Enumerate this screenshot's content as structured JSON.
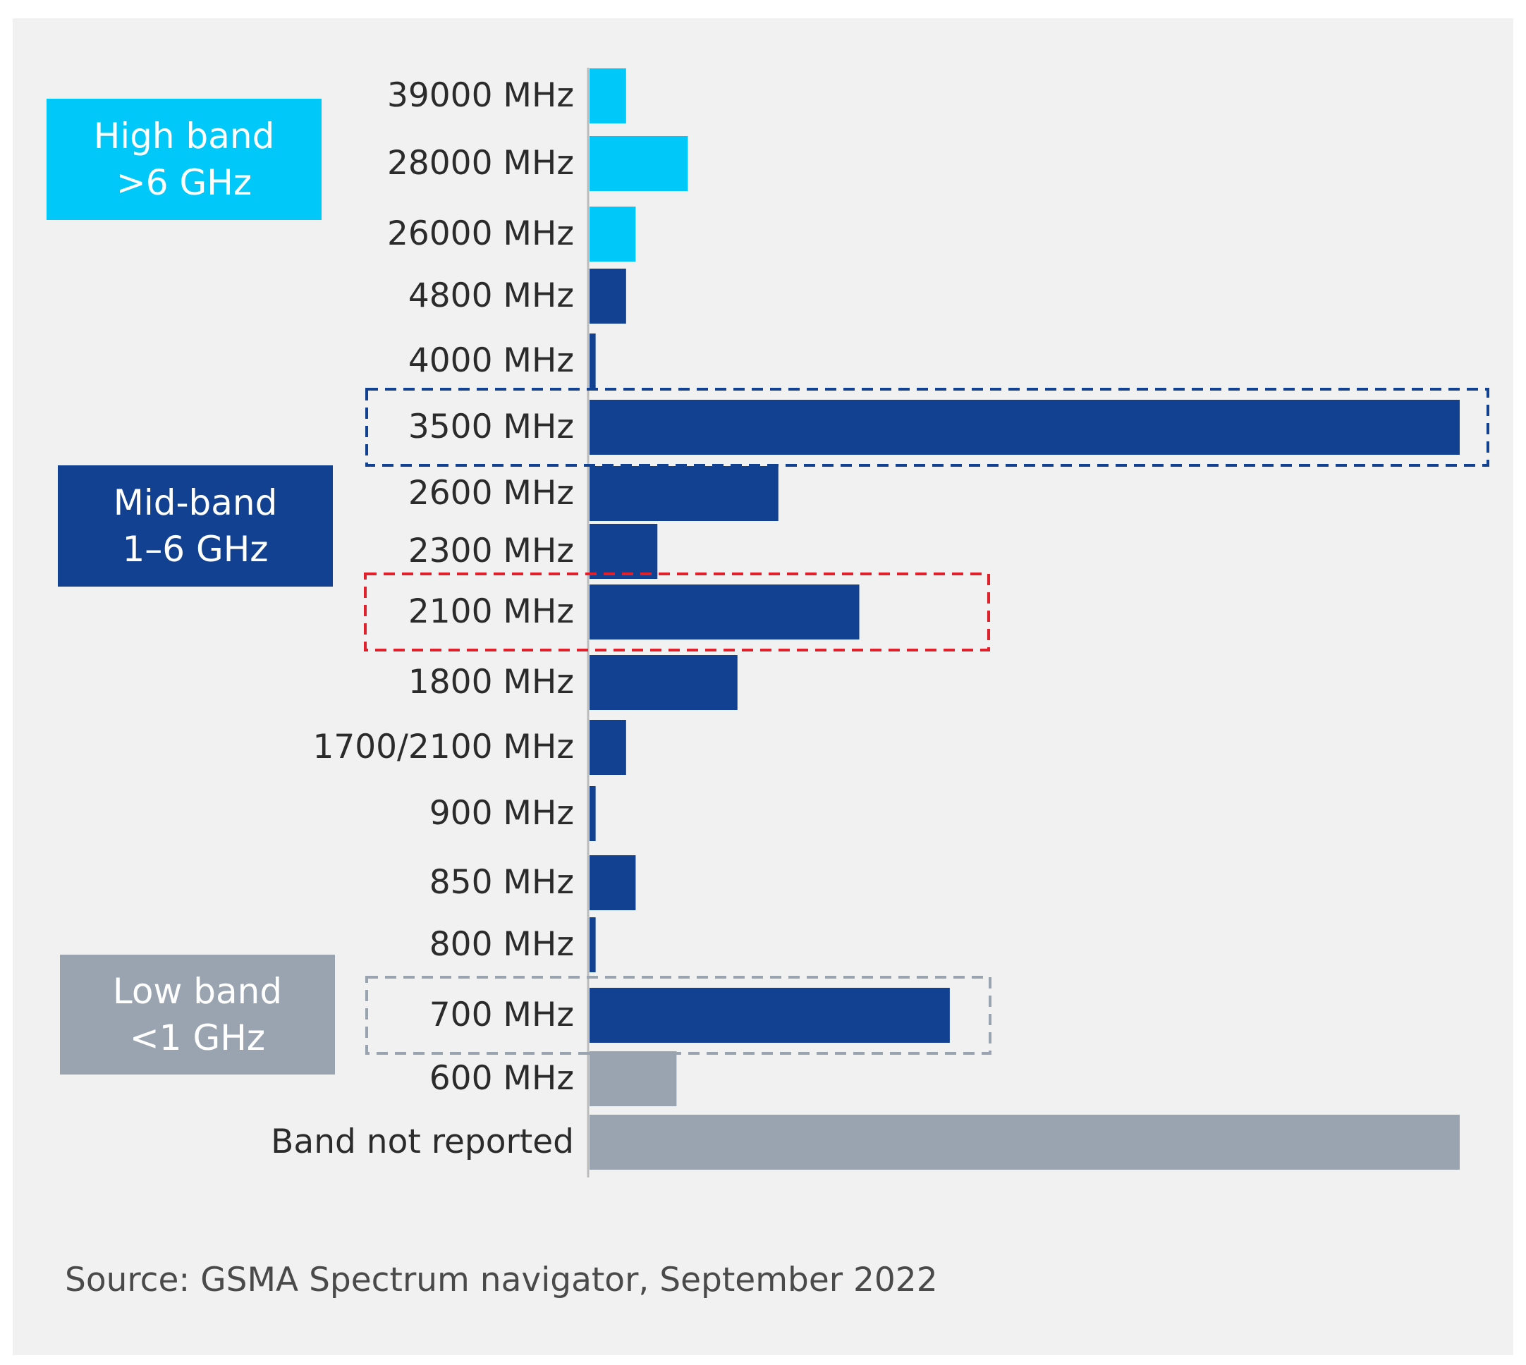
{
  "colors": {
    "high_band": "#00c8f8",
    "mid_band": "#124191",
    "low_band": "#9aa4b0",
    "highlight_blue": "#124191",
    "highlight_red": "#e0202a",
    "highlight_gray": "#9aa4b0"
  },
  "groups": {
    "high": {
      "line1": "High band",
      "line2": ">6 GHz"
    },
    "mid": {
      "line1": "Mid-band",
      "line2": "1–6 GHz"
    },
    "low": {
      "line1": "Low band",
      "line2": "<1 GHz"
    }
  },
  "source": "Source: GSMA Spectrum navigator, September 2022",
  "chart_data": {
    "type": "bar",
    "orientation": "horizontal",
    "categories": [
      "39000 MHz",
      "28000 MHz",
      "26000 MHz",
      "4800 MHz",
      "4000 MHz",
      "3500 MHz",
      "2600 MHz",
      "2300 MHz",
      "2100 MHz",
      "1800 MHz",
      "1700/2100 MHz",
      "900 MHz",
      "850 MHz",
      "800 MHz",
      "700 MHz",
      "600 MHz",
      "Band not reported"
    ],
    "band_group": [
      "high",
      "high",
      "high",
      "mid",
      "mid",
      "mid",
      "mid",
      "mid",
      "mid",
      "mid",
      "mid",
      "mid",
      "mid",
      "mid",
      "mid",
      "low",
      "low"
    ],
    "values": [
      4.2,
      11.3,
      5.3,
      4.2,
      0.7,
      100,
      21.7,
      7.8,
      31,
      17,
      4.2,
      0.7,
      5.3,
      0.7,
      41.4,
      10,
      100
    ],
    "highlighted": [
      {
        "category": "3500 MHz",
        "style": "blue-dashed"
      },
      {
        "category": "2100 MHz",
        "style": "red-dashed"
      },
      {
        "category": "700 MHz",
        "style": "gray-dashed"
      }
    ],
    "title": "",
    "xlabel": "",
    "ylabel": "",
    "xlim": [
      0,
      100
    ],
    "grid": false,
    "legend": "left group boxes"
  }
}
